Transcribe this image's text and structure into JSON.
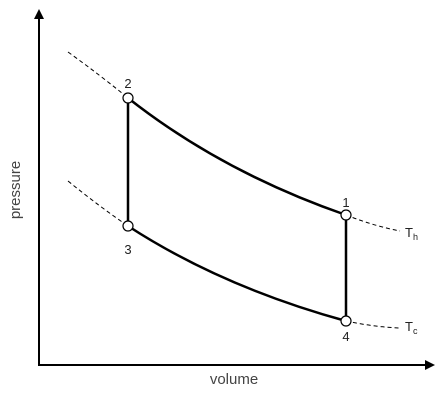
{
  "diagram": {
    "x_axis_label": "volume",
    "y_axis_label": "pressure",
    "points": [
      {
        "id": "1",
        "label": "1"
      },
      {
        "id": "2",
        "label": "2"
      },
      {
        "id": "3",
        "label": "3"
      },
      {
        "id": "4",
        "label": "4"
      }
    ],
    "isotherms": [
      {
        "id": "hot",
        "base": "T",
        "subscript": "h"
      },
      {
        "id": "cold",
        "base": "T",
        "subscript": "c"
      }
    ]
  }
}
